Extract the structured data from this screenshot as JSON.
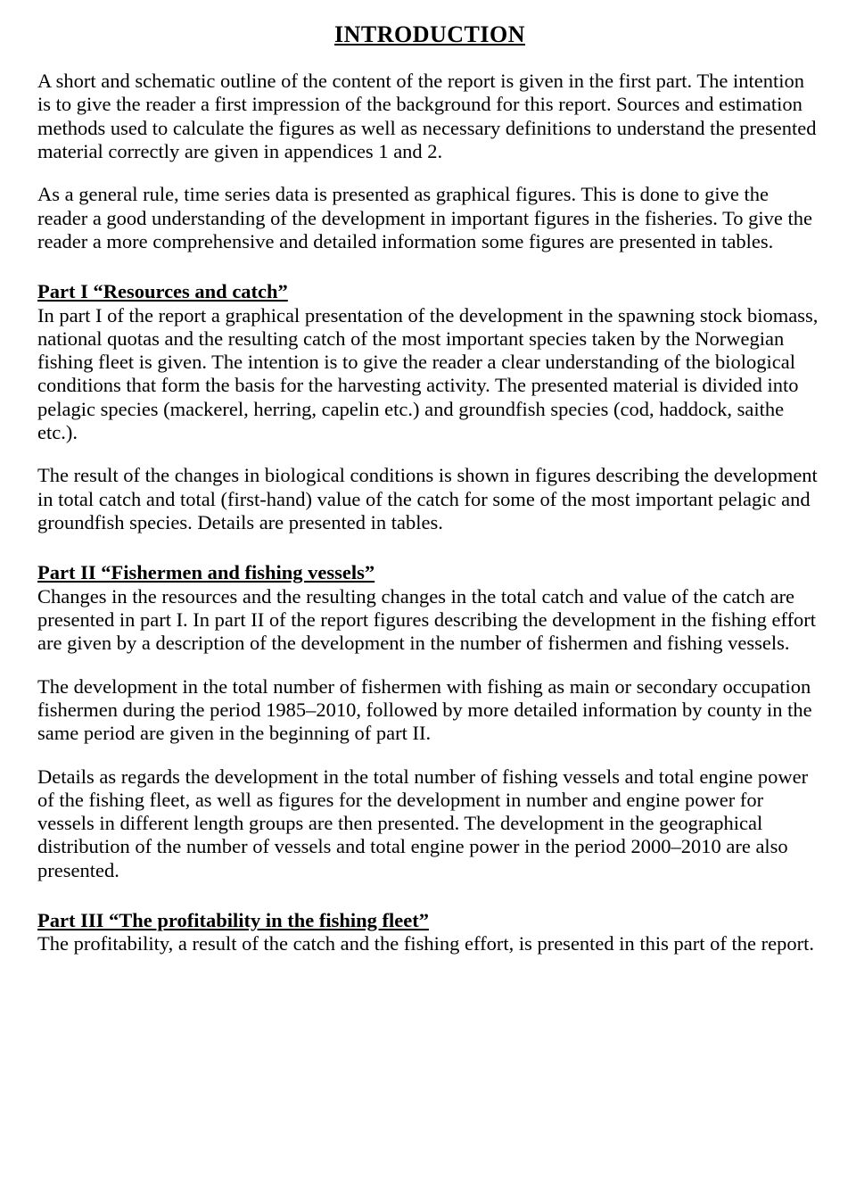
{
  "title": "INTRODUCTION",
  "paragraphs": {
    "intro1": "A short and schematic outline of the content of the report is given in the first part. The intention is to give the reader a first impression of the background for this report. Sources and estimation methods used to calculate the figures as well as necessary definitions to understand the presented material correctly are given in appendices 1 and 2.",
    "intro2": "As a general rule, time series data is presented as graphical figures. This is done to give the reader a good understanding of the development in important figures in the fisheries. To give the reader a more comprehensive and detailed information some figures are presented in tables."
  },
  "part1": {
    "heading": "Part I “Resources and catch”",
    "p1": "In part I of the report a graphical presentation of the development in the spawning stock biomass, national quotas and the resulting catch of the most important species taken by the Norwegian fishing fleet is given. The intention is to give the reader a clear understanding of the biological conditions that form the basis for the harvesting activity. The presented material is divided into pelagic species (mackerel, herring, capelin etc.) and groundfish species (cod, haddock, saithe etc.).",
    "p2": "The result of the changes in biological conditions is shown in figures describing the development in total catch and total (first-hand) value of the catch for some of the most important pelagic and groundfish species. Details are presented in tables."
  },
  "part2": {
    "heading": "Part II “Fishermen and fishing vessels”",
    "p1": "Changes in the resources and the resulting changes in the total catch and value of the catch are presented in part I. In part II of the report figures describing the development in the fishing effort are given by a description of the development in the number of fishermen and fishing vessels.",
    "p2": "The development in the total number of fishermen with fishing as main or secondary occupation fishermen during the period 1985–2010, followed by more detailed information by county in the same period are given in the beginning of part II.",
    "p3": "Details as regards the development in the total number of fishing vessels and total engine power of the fishing fleet, as well as figures for the development in number and engine power for vessels in different length groups are then presented. The development in the geographical distribution of the number of vessels and total engine power in the period 2000–2010 are also presented."
  },
  "part3": {
    "heading": "Part III “The profitability in the fishing fleet”",
    "p1": "The profitability, a result of the catch and the fishing effort, is presented in this part of the report."
  }
}
